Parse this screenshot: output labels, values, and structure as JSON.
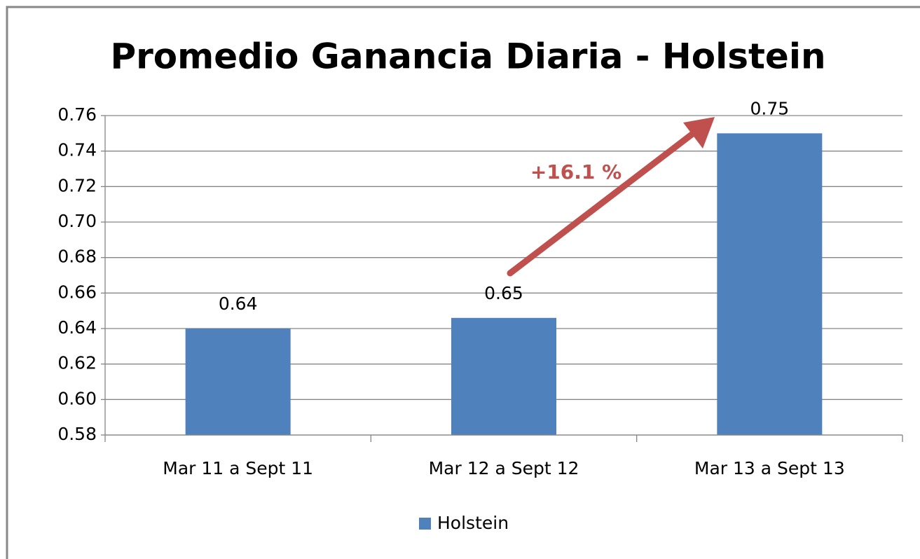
{
  "chart_data": {
    "type": "bar",
    "title": "Promedio Ganancia Diaria - Holstein",
    "categories": [
      "Mar 11 a Sept 11",
      "Mar 12 a Sept 12",
      "Mar 13 a Sept 13"
    ],
    "series": [
      {
        "name": "Holstein",
        "color": "#4f81bd",
        "values": [
          0.64,
          0.646,
          0.75
        ],
        "value_labels": [
          "0.64",
          "0.65",
          "0.75"
        ]
      }
    ],
    "ylim": [
      0.58,
      0.76
    ],
    "yticks": [
      0.58,
      {
        "value": 0.6,
        "label": "0.60"
      },
      0.62,
      0.64,
      0.66,
      0.68,
      {
        "value": 0.7,
        "label": "0.70"
      },
      0.72,
      0.74,
      0.76
    ],
    "grid": true,
    "legend": "bottom",
    "annotations": [
      "+16.1 %"
    ]
  }
}
